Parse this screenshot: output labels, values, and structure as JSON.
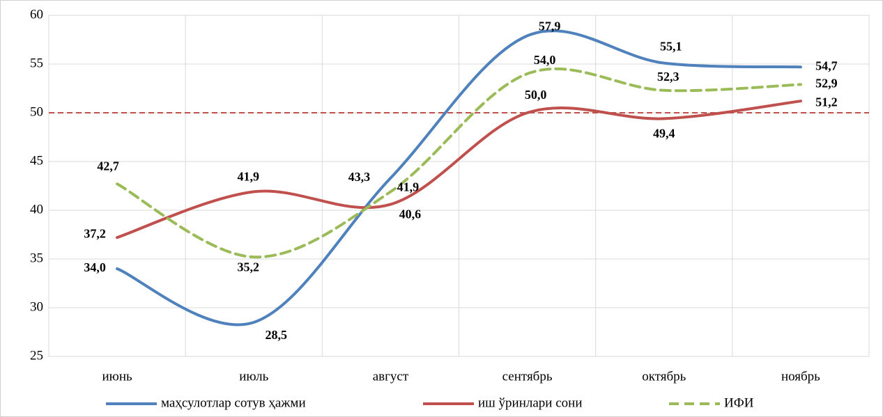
{
  "chart_data": {
    "type": "line",
    "categories": [
      "июнь",
      "июль",
      "август",
      "сентябрь",
      "октябрь",
      "ноябрь"
    ],
    "series": [
      {
        "name": "маҳсулотлар сотув ҳажми",
        "color": "#4f81bd",
        "label_color": "#376092",
        "dash": false,
        "values": [
          34.0,
          28.5,
          43.3,
          57.9,
          55.1,
          54.7
        ],
        "value_labels": [
          "34,0",
          "28,5",
          "43,3",
          "57,9",
          "55,1",
          "54,7"
        ]
      },
      {
        "name": "иш ўринлари сони",
        "color": "#c0504d",
        "label_color": "#953735",
        "dash": false,
        "values": [
          37.2,
          41.9,
          40.6,
          50.0,
          49.4,
          51.2
        ],
        "value_labels": [
          "37,2",
          "41,9",
          "40,6",
          "50,0",
          "49,4",
          "51,2"
        ]
      },
      {
        "name": "ИФИ",
        "color": "#9bbb59",
        "label_color": "#4f6228",
        "dash": true,
        "values": [
          42.7,
          35.2,
          41.9,
          54.0,
          52.3,
          52.9
        ],
        "value_labels": [
          "42,7",
          "35,2",
          "41,9",
          "54,0",
          "52,3",
          "52,9"
        ]
      }
    ],
    "reference_line": {
      "value": 50,
      "color": "#c0504d"
    },
    "ylim": [
      25,
      60
    ],
    "yticks": [
      25,
      30,
      35,
      40,
      45,
      50,
      55,
      60
    ],
    "grid": true,
    "legend": "bottom"
  }
}
